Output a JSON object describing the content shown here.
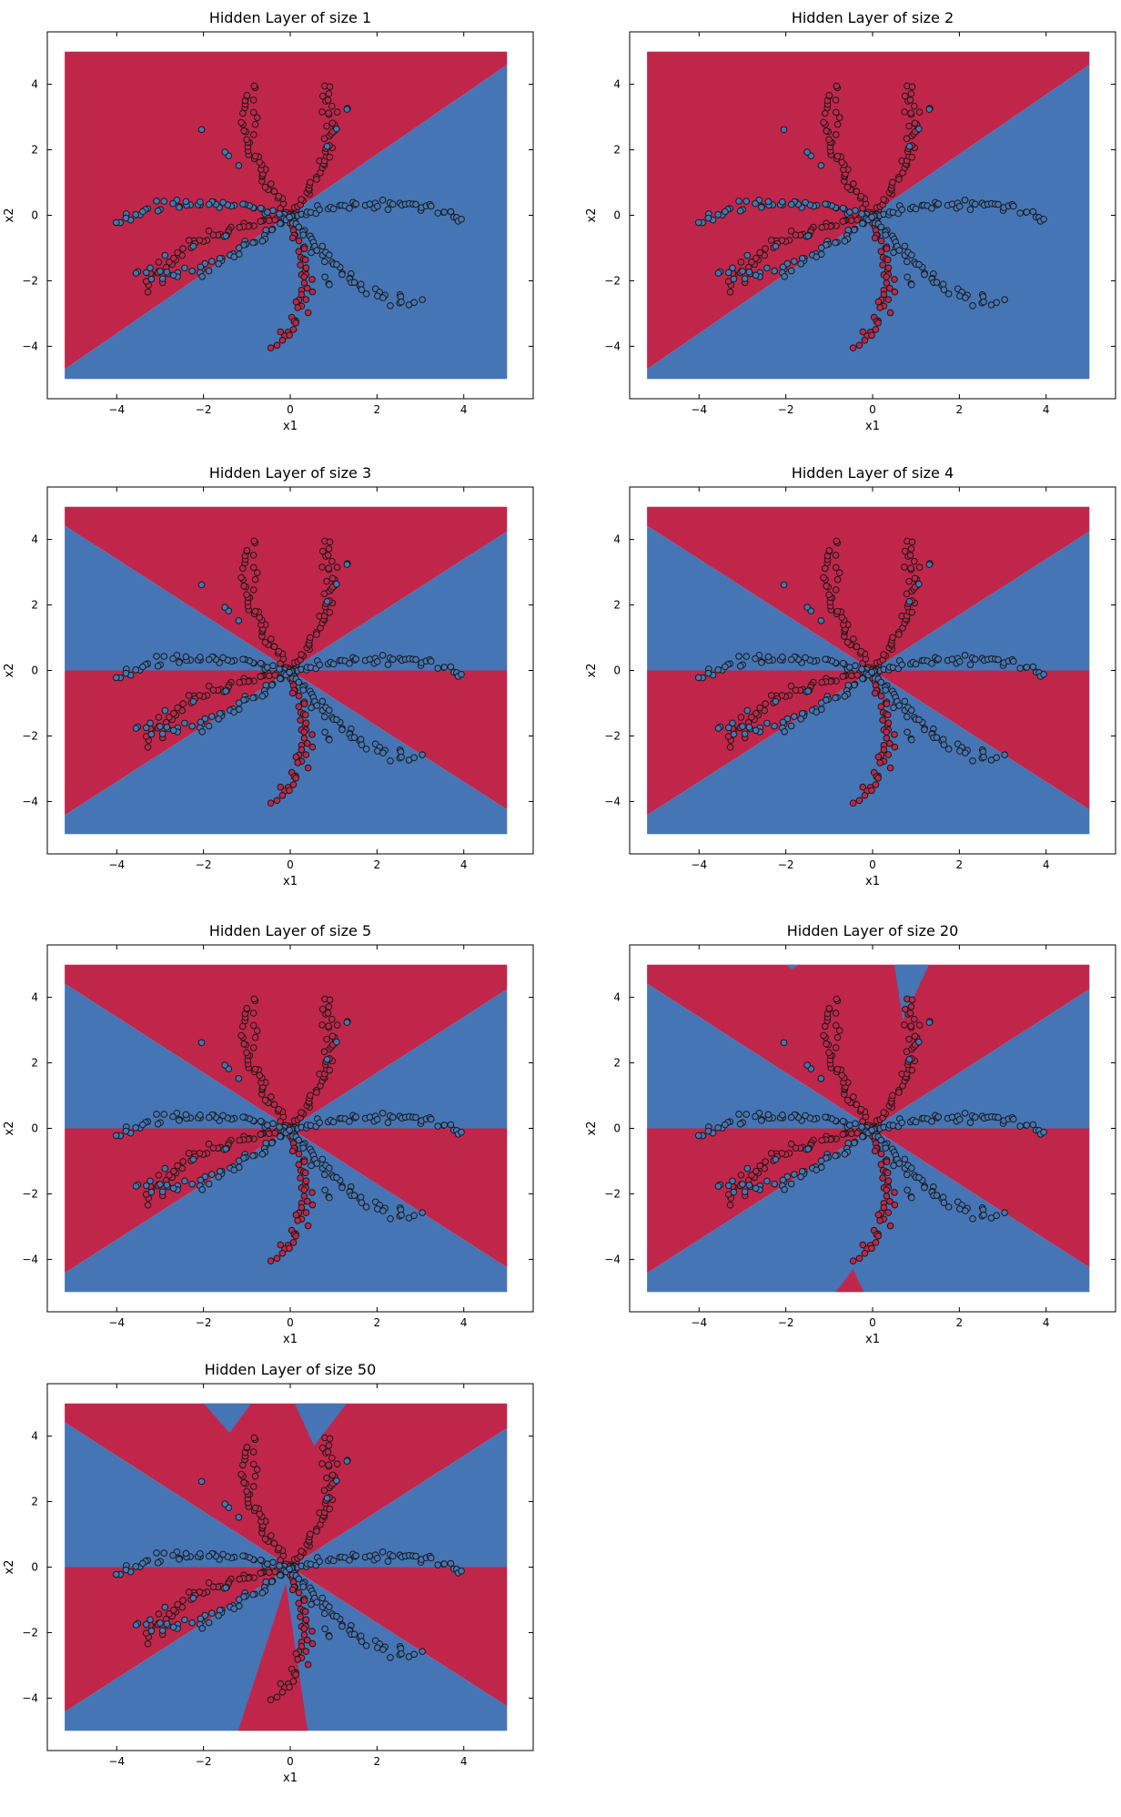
{
  "colors": {
    "class0": "#C0264A",
    "class1": "#4575B4",
    "point_stroke": "#1a1a1a",
    "frame": "#000000"
  },
  "chart_data": [
    {
      "type": "scatter",
      "title": "Hidden Layer of size 1",
      "xlabel": "x1",
      "ylabel": "x2",
      "xlim": [
        -5.6,
        5.6
      ],
      "ylim": [
        -5.6,
        5.6
      ],
      "xticks": [
        "−4",
        "−2",
        "0",
        "2",
        "4"
      ],
      "yticks": [
        "4",
        "2",
        "0",
        "−2",
        "−4"
      ],
      "boundary": "one diagonal line through origin: class 0 above, class 1 below",
      "hidden_size": 1
    },
    {
      "type": "scatter",
      "title": "Hidden Layer of size 2",
      "xlabel": "x1",
      "ylabel": "x2",
      "xlim": [
        -5.6,
        5.6
      ],
      "ylim": [
        -5.6,
        5.6
      ],
      "xticks": [
        "−4",
        "−2",
        "0",
        "2",
        "4"
      ],
      "yticks": [
        "4",
        "2",
        "0",
        "−2",
        "−4"
      ],
      "boundary": "one diagonal line through origin: class 0 above, class 1 below",
      "hidden_size": 2
    },
    {
      "type": "scatter",
      "title": "Hidden Layer of size 3",
      "xlabel": "x1",
      "ylabel": "x2",
      "xlim": [
        -5.6,
        5.6
      ],
      "ylim": [
        -5.6,
        5.6
      ],
      "xticks": [
        "−4",
        "−2",
        "0",
        "2",
        "4"
      ],
      "yticks": [
        "4",
        "2",
        "0",
        "−2",
        "−4"
      ],
      "boundary": "three lines through origin forming six sectors",
      "hidden_size": 3
    },
    {
      "type": "scatter",
      "title": "Hidden Layer of size 4",
      "xlabel": "x1",
      "ylabel": "x2",
      "xlim": [
        -5.6,
        5.6
      ],
      "ylim": [
        -5.6,
        5.6
      ],
      "xticks": [
        "−4",
        "−2",
        "0",
        "2",
        "4"
      ],
      "yticks": [
        "4",
        "2",
        "0",
        "−2",
        "−4"
      ],
      "boundary": "three lines through origin forming six sectors",
      "hidden_size": 4
    },
    {
      "type": "scatter",
      "title": "Hidden Layer of size 5",
      "xlabel": "x1",
      "ylabel": "x2",
      "xlim": [
        -5.6,
        5.6
      ],
      "ylim": [
        -5.6,
        5.6
      ],
      "xticks": [
        "−4",
        "−2",
        "0",
        "2",
        "4"
      ],
      "yticks": [
        "4",
        "2",
        "0",
        "−2",
        "−4"
      ],
      "boundary": "three lines through origin forming six sectors",
      "hidden_size": 5
    },
    {
      "type": "scatter",
      "title": "Hidden Layer of size 20",
      "xlabel": "x1",
      "ylabel": "x2",
      "xlim": [
        -5.6,
        5.6
      ],
      "ylim": [
        -5.6,
        5.6
      ],
      "xticks": [
        "−4",
        "−2",
        "0",
        "2",
        "4"
      ],
      "yticks": [
        "4",
        "2",
        "0",
        "−2",
        "−4"
      ],
      "boundary": "six sectors with small wedge artifacts at top and bottom",
      "hidden_size": 20
    },
    {
      "type": "scatter",
      "title": "Hidden Layer of size 50",
      "xlabel": "x1",
      "ylabel": "x2",
      "xlim": [
        -5.6,
        5.6
      ],
      "ylim": [
        -5.6,
        5.6
      ],
      "xticks": [
        "−4",
        "−2",
        "0",
        "2",
        "4"
      ],
      "yticks": [
        "4",
        "2",
        "0",
        "−2",
        "−4"
      ],
      "boundary": "six sectors with larger wedge artifacts at top and bottom",
      "hidden_size": 50
    }
  ],
  "points": {
    "description": "Planar flower dataset, 8 petals, 400 points",
    "class0_red_petals_deg": [
      60,
      120,
      195,
      285
    ],
    "class1_blue_petals_deg": [
      15,
      165,
      225,
      300
    ],
    "petal_max_radius": 4.0
  }
}
